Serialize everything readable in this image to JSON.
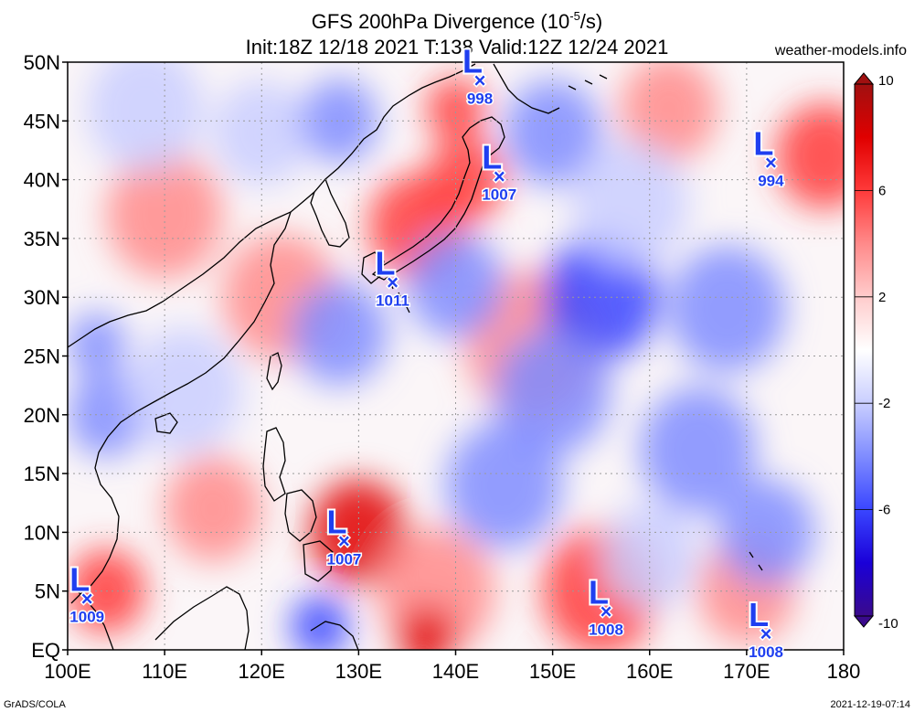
{
  "title": {
    "line1": "GFS 200hPa Divergence (10",
    "line1_sup": "-5",
    "line1_tail": "/s)",
    "line2": "Init:18Z 12/18 2021 T:138 Valid:12Z 12/24 2021"
  },
  "site_label": "weather-models.info",
  "footer": {
    "left": "GrADS/COLA",
    "right": "2021-12-19-07:14"
  },
  "map": {
    "region": "Western North Pacific",
    "lon_range": [
      100,
      180
    ],
    "lat_range": [
      0,
      50
    ],
    "lon_labels": [
      "100E",
      "110E",
      "120E",
      "130E",
      "140E",
      "150E",
      "160E",
      "170E",
      "180"
    ],
    "lat_labels": [
      "50N",
      "45N",
      "40N",
      "35N",
      "30N",
      "25N",
      "20N",
      "15N",
      "10N",
      "5N",
      "EQ"
    ],
    "grid": true,
    "colorbar": {
      "ticks": [
        "10",
        "6",
        "2",
        "-2",
        "-6",
        "-10"
      ],
      "tick_values": [
        10,
        6,
        2,
        -2,
        -6,
        -10
      ],
      "range": [
        -10,
        10
      ],
      "colors": [
        "#3a0a8c",
        "#1a00d8",
        "#3a46ff",
        "#7f8cff",
        "#c9ceff",
        "#ffffff",
        "#ffcccc",
        "#ff8a8a",
        "#ff3a3a",
        "#e00000",
        "#a01010"
      ]
    },
    "lows": [
      {
        "symbol": "L",
        "marker": "×",
        "pressure": "998",
        "lon": 142.5,
        "lat": 48.5
      },
      {
        "symbol": "L",
        "marker": "×",
        "pressure": "1007",
        "lon": 144.5,
        "lat": 40.3
      },
      {
        "symbol": "L",
        "marker": "×",
        "pressure": "994",
        "lon": 172.5,
        "lat": 41.5
      },
      {
        "symbol": "L",
        "marker": "×",
        "pressure": "1011",
        "lon": 133.5,
        "lat": 31.3
      },
      {
        "symbol": "L",
        "marker": "×",
        "pressure": "1007",
        "lon": 128.5,
        "lat": 9.3
      },
      {
        "symbol": "L",
        "marker": "×",
        "pressure": "1009",
        "lon": 102.0,
        "lat": 4.4
      },
      {
        "symbol": "L",
        "marker": "×",
        "pressure": "1008",
        "lon": 155.5,
        "lat": 3.3
      },
      {
        "symbol": "L",
        "marker": "×",
        "pressure": "1008",
        "lon": 172.0,
        "lat": 1.4
      }
    ],
    "field_blobs": [
      {
        "lon": 110,
        "lat": 37,
        "v": 3,
        "r": 6
      },
      {
        "lon": 122,
        "lat": 30,
        "v": 4,
        "r": 6
      },
      {
        "lon": 136,
        "lat": 36,
        "v": 5,
        "r": 5
      },
      {
        "lon": 141,
        "lat": 40,
        "v": 5,
        "r": 4
      },
      {
        "lon": 140,
        "lat": 46,
        "v": 6,
        "r": 3
      },
      {
        "lon": 148,
        "lat": 26,
        "v": 3,
        "r": 7
      },
      {
        "lon": 115,
        "lat": 12,
        "v": 4,
        "r": 5
      },
      {
        "lon": 130,
        "lat": 10,
        "v": 7,
        "r": 5
      },
      {
        "lon": 104,
        "lat": 5,
        "v": 5,
        "r": 4
      },
      {
        "lon": 138,
        "lat": 5,
        "v": 3,
        "r": 6
      },
      {
        "lon": 155,
        "lat": 5,
        "v": 5,
        "r": 6
      },
      {
        "lon": 170,
        "lat": 5,
        "v": 4,
        "r": 5
      },
      {
        "lon": 137,
        "lat": 1,
        "v": 7,
        "r": 3
      },
      {
        "lon": 178,
        "lat": 42,
        "v": 5,
        "r": 5
      },
      {
        "lon": 162,
        "lat": 46,
        "v": 3,
        "r": 5
      },
      {
        "lon": 103,
        "lat": 26,
        "v": -5,
        "r": 3
      },
      {
        "lon": 104,
        "lat": 20,
        "v": -4,
        "r": 4
      },
      {
        "lon": 112,
        "lat": 22,
        "v": -3,
        "r": 6
      },
      {
        "lon": 128,
        "lat": 27,
        "v": -4,
        "r": 5
      },
      {
        "lon": 140,
        "lat": 31,
        "v": -5,
        "r": 5
      },
      {
        "lon": 155,
        "lat": 30,
        "v": -6,
        "r": 6
      },
      {
        "lon": 168,
        "lat": 29,
        "v": -5,
        "r": 6
      },
      {
        "lon": 150,
        "lat": 22,
        "v": -5,
        "r": 6
      },
      {
        "lon": 165,
        "lat": 17,
        "v": -4,
        "r": 6
      },
      {
        "lon": 145,
        "lat": 14,
        "v": -4,
        "r": 6
      },
      {
        "lon": 160,
        "lat": 8,
        "v": -3,
        "r": 5
      },
      {
        "lon": 172,
        "lat": 10,
        "v": -4,
        "r": 5
      },
      {
        "lon": 126,
        "lat": 2,
        "v": -6,
        "r": 3
      },
      {
        "lon": 120,
        "lat": 44,
        "v": -3,
        "r": 5
      },
      {
        "lon": 108,
        "lat": 46,
        "v": -3,
        "r": 6
      },
      {
        "lon": 150,
        "lat": 44,
        "v": -4,
        "r": 5
      },
      {
        "lon": 128,
        "lat": 45,
        "v": -4,
        "r": 4
      },
      {
        "lon": 158,
        "lat": 38,
        "v": -3,
        "r": 6
      }
    ]
  }
}
